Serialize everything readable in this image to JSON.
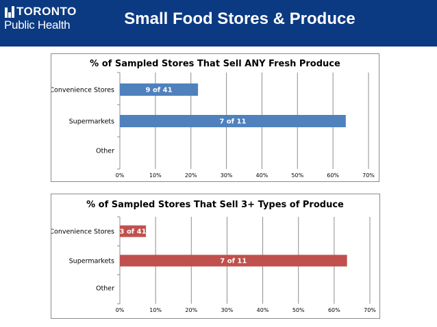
{
  "header": {
    "logo_top": "TORONTO",
    "logo_bottom": "Public Health",
    "title": "Small Food Stores & Produce"
  },
  "colors": {
    "header_bg": "#0b3a82",
    "bar_blue": "#4f81bd",
    "bar_red": "#c0504d",
    "grid": "#8c8c8c"
  },
  "chart_data": [
    {
      "type": "bar",
      "orientation": "horizontal",
      "title": "% of Sampled Stores That Sell ANY Fresh Produce",
      "categories": [
        "Convenience Stores",
        "Supermarkets",
        "Other"
      ],
      "values": [
        22.0,
        63.6,
        null
      ],
      "data_labels": [
        "9 of 41",
        "7 of 11",
        ""
      ],
      "xlim": [
        0,
        70
      ],
      "ticks": [
        "0%",
        "10%",
        "20%",
        "30%",
        "40%",
        "50%",
        "60%",
        "70%"
      ],
      "grid": true,
      "color": "#4f81bd"
    },
    {
      "type": "bar",
      "orientation": "horizontal",
      "title": "% of Sampled Stores That Sell 3+ Types of Produce",
      "categories": [
        "Convenience Stores",
        "Supermarkets",
        "Other"
      ],
      "values": [
        7.3,
        63.6,
        null
      ],
      "data_labels": [
        "3 of 41",
        "7 of 11",
        ""
      ],
      "xlim": [
        0,
        70
      ],
      "ticks": [
        "0%",
        "10%",
        "20%",
        "30%",
        "40%",
        "50%",
        "60%",
        "70%"
      ],
      "grid": true,
      "color": "#c0504d"
    }
  ]
}
